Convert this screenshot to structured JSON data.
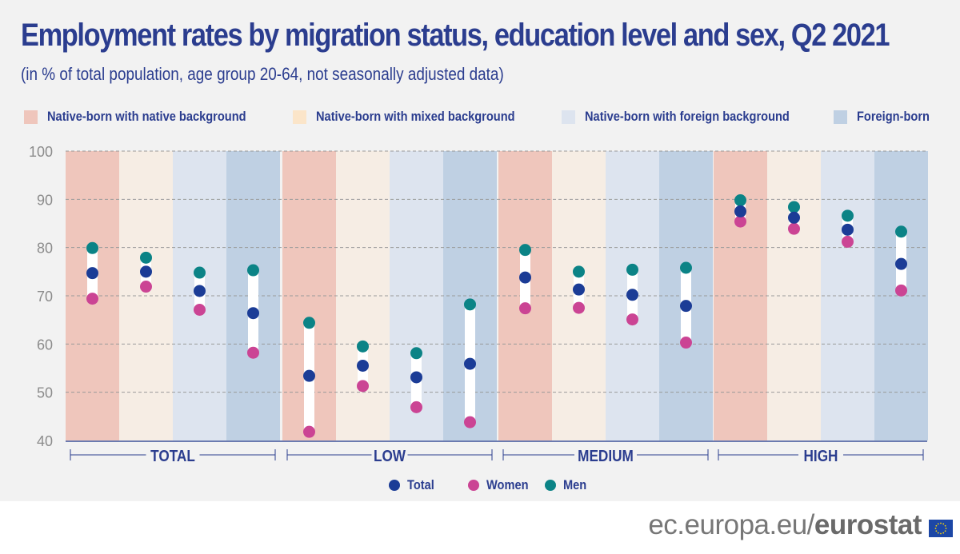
{
  "title": "Employment rates by migration status, education level and sex, Q2 2021",
  "subtitle": "(in % of total population, age group 20-64, not seasonally adjusted data)",
  "category_legend": [
    {
      "label": "Native-born with native background",
      "color": "#efc6bc"
    },
    {
      "label": "Native-born with mixed background",
      "color": "#fbe5c9"
    },
    {
      "label": "Native-born with foreign background",
      "color": "#dde4ef"
    },
    {
      "label": "Foreign-born",
      "color": "#bfd0e3"
    }
  ],
  "series_legend": [
    {
      "label": "Total",
      "color": "#1b3c96"
    },
    {
      "label": "Women",
      "color": "#cb4494"
    },
    {
      "label": "Men",
      "color": "#0b8386"
    }
  ],
  "footer": {
    "url_prefix": "ec.europa.eu/",
    "url_brand": "eurostat"
  },
  "chart_data": {
    "type": "scatter",
    "subtype": "dot-range",
    "title": "Employment rates by migration status, education level and sex, Q2 2021",
    "ylabel": "% of total population",
    "ylim": [
      40,
      100
    ],
    "yticks": [
      40,
      50,
      60,
      70,
      80,
      90,
      100
    ],
    "grid": true,
    "groups": [
      "TOTAL",
      "LOW",
      "MEDIUM",
      "HIGH"
    ],
    "categories": [
      "Native-born with native background",
      "Native-born with mixed background",
      "Native-born with foreign background",
      "Foreign-born"
    ],
    "band_colors": [
      "#efc6bc",
      "#f6ede4",
      "#dde4ef",
      "#bfd0e3"
    ],
    "series": [
      {
        "name": "Total",
        "color": "#1b3c96",
        "values": [
          [
            74.7,
            75.0,
            71.0,
            66.4
          ],
          [
            53.4,
            55.5,
            53.1,
            55.9
          ],
          [
            73.8,
            71.3,
            70.2,
            67.9
          ],
          [
            87.5,
            86.2,
            83.7,
            76.6
          ]
        ]
      },
      {
        "name": "Women",
        "color": "#cb4494",
        "values": [
          [
            69.4,
            71.9,
            67.1,
            58.2
          ],
          [
            41.8,
            51.3,
            46.9,
            43.8
          ],
          [
            67.4,
            67.5,
            65.1,
            60.3
          ],
          [
            85.4,
            83.9,
            81.2,
            71.1
          ]
        ]
      },
      {
        "name": "Men",
        "color": "#0b8386",
        "values": [
          [
            79.9,
            77.9,
            74.8,
            75.3
          ],
          [
            64.4,
            59.5,
            58.1,
            68.2
          ],
          [
            79.5,
            75.0,
            75.4,
            75.8
          ],
          [
            89.8,
            88.4,
            86.6,
            83.3
          ]
        ]
      }
    ],
    "legend": "bottom"
  }
}
